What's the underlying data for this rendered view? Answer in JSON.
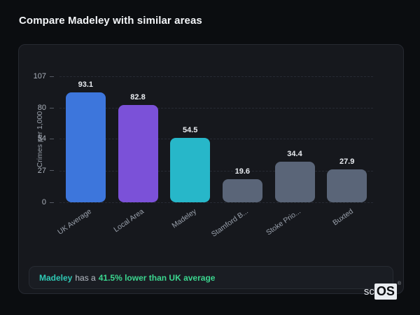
{
  "header": {
    "title": "Compare Madeley with similar areas"
  },
  "chart_data": {
    "type": "bar",
    "title": "",
    "categories": [
      "UK Average",
      "Local Area",
      "Madeley",
      "Stamford B...",
      "Stoke Prio...",
      "Buxted"
    ],
    "values": [
      93.1,
      82.8,
      54.5,
      19.6,
      34.4,
      27.9
    ],
    "bar_colors": [
      "#3d76dc",
      "#7b51d8",
      "#27b7c9",
      "#5a6578",
      "#5a6578",
      "#5a6578"
    ],
    "xlabel": "",
    "ylabel": "Crimes per 1,000",
    "yticks": [
      0,
      27,
      54,
      80,
      107
    ],
    "ylim": [
      0,
      107
    ],
    "grid": "horizontal-dashed",
    "legend": "none"
  },
  "note": {
    "area": "Madeley",
    "connector": "has a",
    "highlight": "41.5% lower than UK average"
  },
  "logo": {
    "prefix": "sc",
    "wordmark": "OS",
    "registered": "®"
  },
  "colors": {
    "page_background": "#0b0d10",
    "card_background": "#16181d",
    "card_border": "#262931",
    "accent_teal": "#2fc8b4",
    "accent_green": "#3bd68f",
    "text_primary": "#f3f5f8",
    "text_muted": "#99a0ab"
  }
}
